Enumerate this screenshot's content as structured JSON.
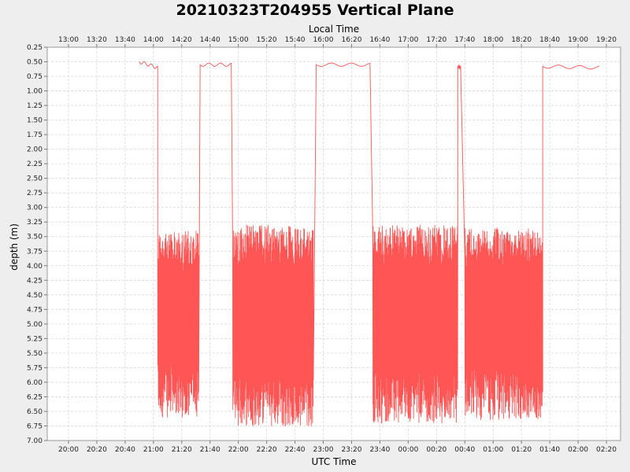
{
  "chart_data": {
    "type": "line",
    "title": "20210323T204955 Vertical Plane",
    "xlabel": "UTC Time",
    "x2label": "Local Time",
    "ylabel": "depth (m)",
    "y_inverted": true,
    "ylim": [
      0.25,
      7.0
    ],
    "yticks": [
      "0.25",
      "0.50",
      "0.75",
      "1.00",
      "1.25",
      "1.50",
      "1.75",
      "2.00",
      "2.25",
      "2.50",
      "2.75",
      "3.00",
      "3.25",
      "3.50",
      "3.75",
      "4.00",
      "4.25",
      "4.50",
      "4.75",
      "5.00",
      "5.25",
      "5.50",
      "5.75",
      "6.00",
      "6.25",
      "6.50",
      "6.75",
      "7.00"
    ],
    "x_range_utc": [
      "2021-03-23 19:45",
      "2021-03-24 02:30"
    ],
    "xticks_utc": [
      "20:00",
      "20:20",
      "20:40",
      "21:00",
      "21:20",
      "21:40",
      "22:00",
      "22:20",
      "22:40",
      "23:00",
      "23:20",
      "23:40",
      "00:00",
      "00:20",
      "00:40",
      "01:00",
      "01:20",
      "01:40",
      "02:00",
      "02:20"
    ],
    "xticks_local": [
      "13:00",
      "13:20",
      "13:40",
      "14:00",
      "14:20",
      "14:40",
      "15:00",
      "15:20",
      "15:40",
      "16:00",
      "16:20",
      "16:40",
      "17:00",
      "17:20",
      "17:40",
      "18:00",
      "18:20",
      "18:40",
      "19:00",
      "19:20"
    ],
    "grid": true,
    "series": [
      {
        "color": "#ff5555",
        "surface_segments": [
          {
            "start": "20:50",
            "end": "21:03",
            "depth_start": 0.5,
            "depth_end": 0.6
          },
          {
            "start": "21:33",
            "end": "21:55",
            "depth_start": 0.55,
            "depth_end": 0.55
          },
          {
            "start": "22:55",
            "end": "23:33",
            "depth_start": 0.55,
            "depth_end": 0.55
          },
          {
            "start": "00:35",
            "end": "00:37",
            "depth_start": 0.58,
            "depth_end": 0.6
          },
          {
            "start": "01:35",
            "end": "02:15",
            "depth_start": 0.58,
            "depth_end": 0.6
          }
        ],
        "dive_segments": [
          {
            "start": "21:03",
            "end": "21:32",
            "min_depth": 3.4,
            "max_depth": 6.6
          },
          {
            "start": "21:56",
            "end": "22:53",
            "min_depth": 3.3,
            "max_depth": 6.75
          },
          {
            "start": "23:35",
            "end": "00:35",
            "min_depth": 3.3,
            "max_depth": 6.7
          },
          {
            "start": "00:40",
            "end": "01:35",
            "min_depth": 3.35,
            "max_depth": 6.65
          }
        ]
      }
    ]
  }
}
